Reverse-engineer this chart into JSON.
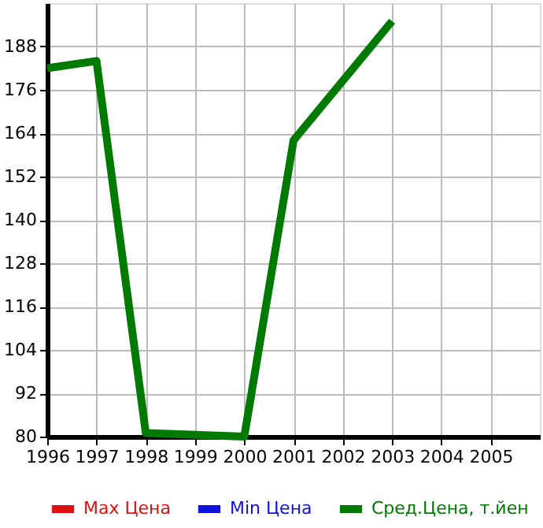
{
  "chart_data": {
    "type": "line",
    "x": [
      1996,
      1997,
      1998,
      2000,
      2001,
      2003
    ],
    "series": [
      {
        "name": "Max Цена",
        "color": "#dd1111",
        "values": [
          null,
          null,
          null,
          null,
          null,
          null
        ]
      },
      {
        "name": "Min Цена",
        "color": "#1111dd",
        "values": [
          null,
          null,
          null,
          null,
          null,
          null
        ]
      },
      {
        "name": "Сред.Цена, т.йен",
        "color": "#007a00",
        "values": [
          182,
          184,
          81,
          80,
          162,
          195
        ]
      }
    ],
    "xlim": [
      1996,
      2006
    ],
    "xticks": [
      1996,
      1997,
      1998,
      1999,
      2000,
      2001,
      2002,
      2003,
      2004,
      2005
    ],
    "ylim": [
      80,
      200
    ],
    "yticks": [
      80,
      92,
      104,
      116,
      128,
      140,
      152,
      164,
      176,
      188
    ],
    "grid": true,
    "legend": "bottom",
    "marker": "none",
    "line_style": "solid"
  }
}
